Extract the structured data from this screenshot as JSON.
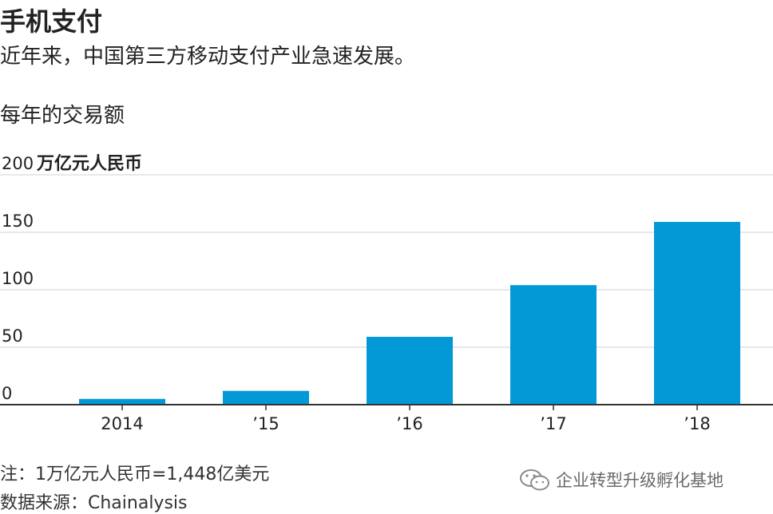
{
  "title": "手机支付",
  "subtitle": "近年来，中国第三方移动支付产业急速发展。",
  "chart_heading": "每年的交易额",
  "footnote": "注：1万亿元人民币=1,448亿美元",
  "source": "数据来源：Chainalysis",
  "watermark_text": "企业转型升级孵化基地",
  "watermark_icon": "wechat-icon",
  "colors": {
    "bar": "#0399D7",
    "grid": "#d0d0d0",
    "axis": "#333333",
    "text": "#222222"
  },
  "chart_data": {
    "type": "bar",
    "title": "每年的交易额",
    "ylabel": "万亿元人民币",
    "xlabel": "",
    "categories": [
      "2014",
      "’15",
      "’16",
      "’17",
      "’18"
    ],
    "values": [
      5,
      12,
      59,
      104,
      159
    ],
    "ylim": [
      0,
      200
    ],
    "yticks": [
      0,
      50,
      100,
      150,
      200
    ],
    "ytick_labels": [
      "0",
      "50",
      "100",
      "150",
      "200"
    ],
    "grid": true,
    "legend": "none"
  }
}
